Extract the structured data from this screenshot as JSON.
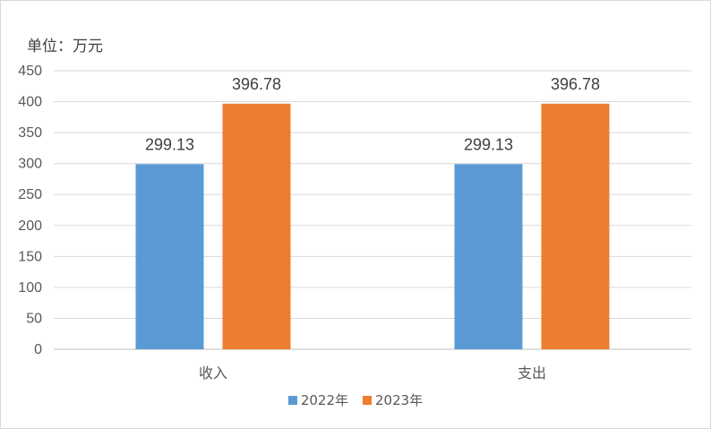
{
  "chart_data": {
    "type": "bar",
    "ylabel": "单位：万元",
    "categories": [
      "收入",
      "支出"
    ],
    "series": [
      {
        "name": "2022年",
        "values": [
          299.13,
          299.13
        ],
        "color": "#5b9bd5"
      },
      {
        "name": "2023年",
        "values": [
          396.78,
          396.78
        ],
        "color": "#ed7d31"
      }
    ],
    "ylim": [
      0,
      450
    ],
    "yticks": [
      0,
      50,
      100,
      150,
      200,
      250,
      300,
      350,
      400,
      450
    ],
    "grid": true,
    "legend_position": "bottom"
  }
}
